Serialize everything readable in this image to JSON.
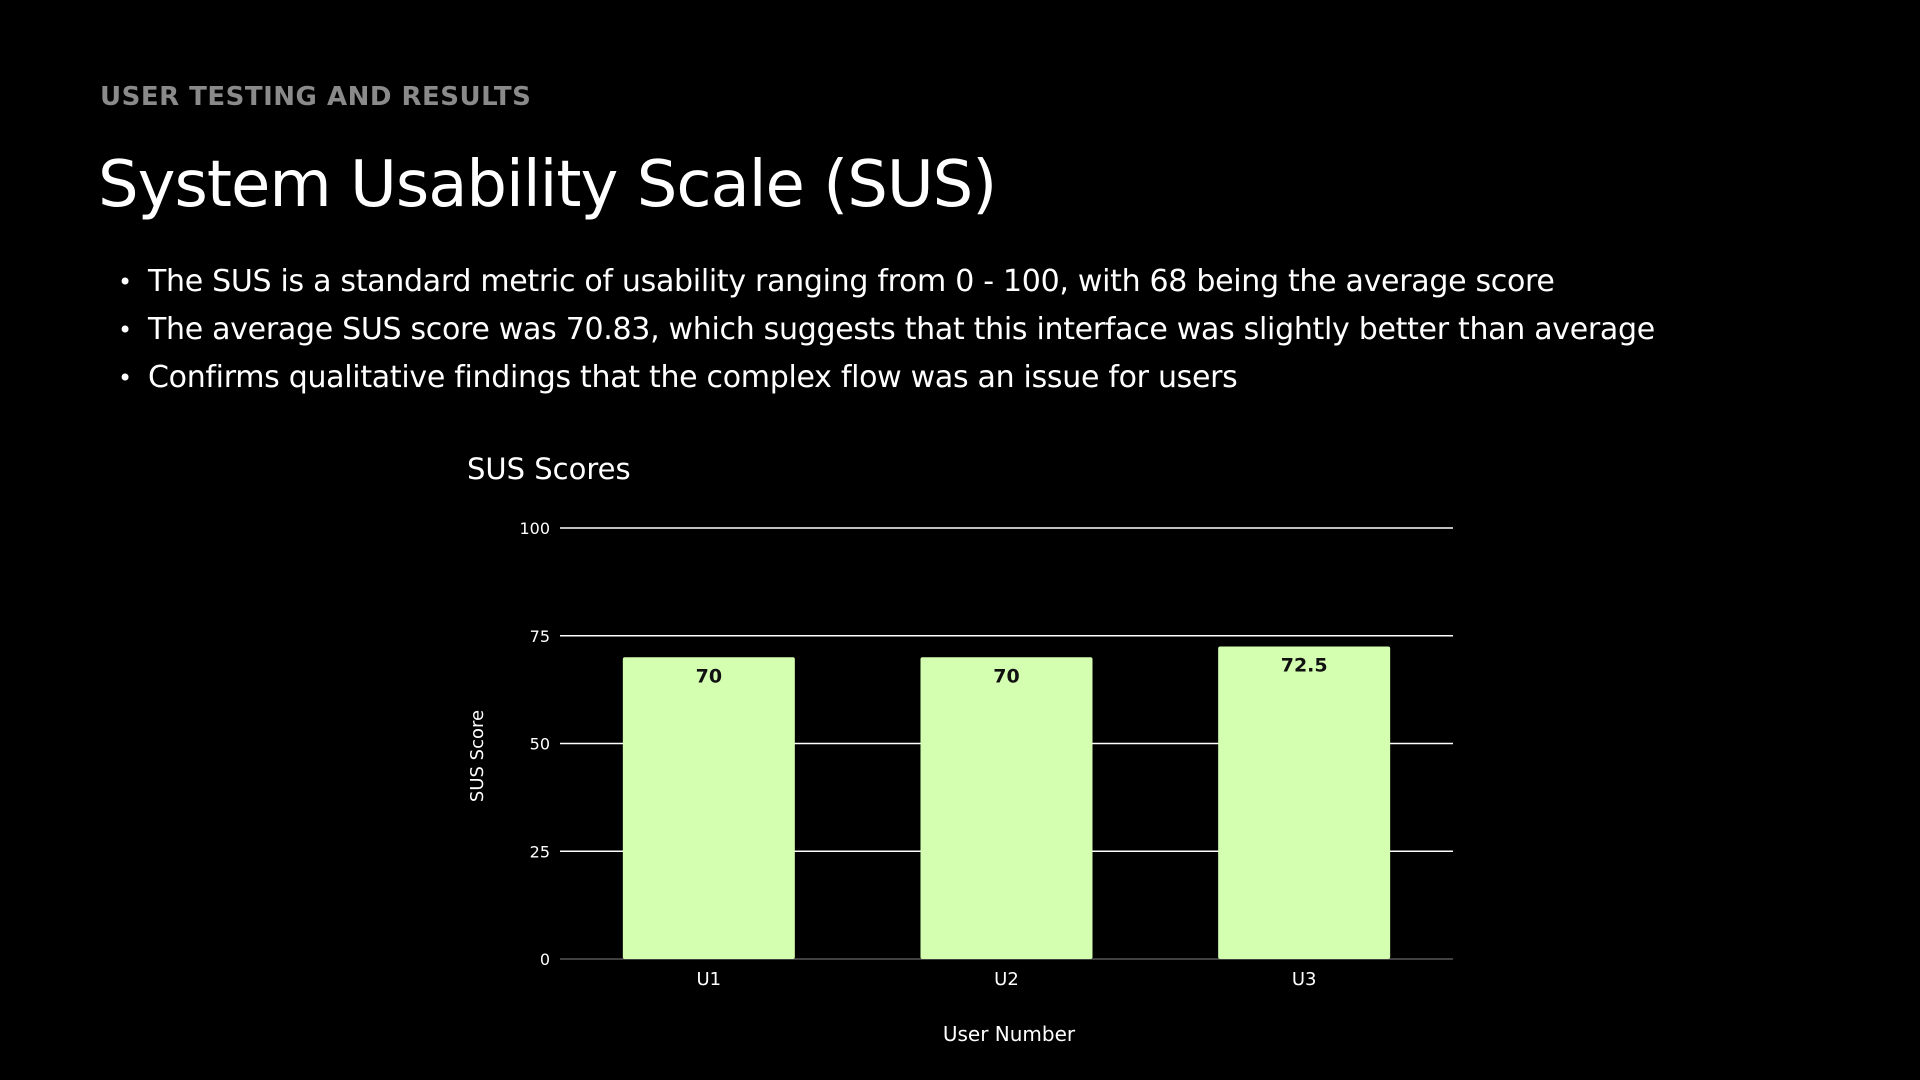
{
  "eyebrow": "USER TESTING AND RESULTS",
  "title": "System Usability Scale (SUS)",
  "bullets": [
    "The SUS is a standard metric of usability ranging from 0 - 100, with 68 being the average score",
    "The average SUS score was 70.83, which suggests that this interface was slightly better than average",
    "Confirms qualitative findings that the complex flow was an issue for users"
  ],
  "colors": {
    "background": "#000000",
    "bar": "#d4ffb0",
    "gridline": "#ffffff",
    "eyebrow": "#8a8a8a"
  },
  "chart_data": {
    "type": "bar",
    "title": "SUS Scores",
    "xlabel": "User Number",
    "ylabel": "SUS Score",
    "categories": [
      "U1",
      "U2",
      "U3"
    ],
    "values": [
      70,
      70,
      72.5
    ],
    "data_labels": [
      "70",
      "70",
      "72.5"
    ],
    "ylim": [
      0,
      100
    ],
    "yticks": [
      0,
      25,
      50,
      75,
      100
    ],
    "grid": true,
    "legend": "none"
  }
}
